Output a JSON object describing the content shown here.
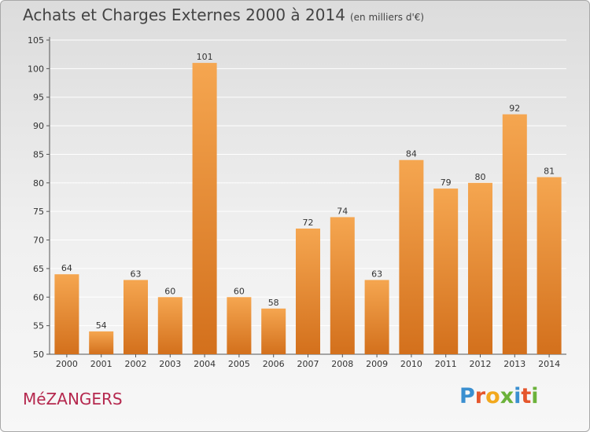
{
  "header": {
    "title": "Achats et Charges Externes 2000 à 2014",
    "subtitle": "(en milliers d'€)"
  },
  "footer": {
    "commune": "MéZANGERS",
    "logo_letters": [
      "P",
      "r",
      "o",
      "x",
      "i",
      "t",
      "i"
    ],
    "logo_colors": [
      "#3a8fd0",
      "#e5562c",
      "#f2a81d",
      "#6bb23a",
      "#3a8fd0",
      "#e5562c",
      "#6bb23a"
    ]
  },
  "colors": {
    "bar_light": "#f5a650",
    "bar_dark": "#d3701c",
    "axis": "#555555",
    "grid": "#ffffff"
  },
  "chart_data": {
    "type": "bar",
    "categories": [
      "2000",
      "2001",
      "2002",
      "2003",
      "2004",
      "2005",
      "2006",
      "2007",
      "2008",
      "2009",
      "2010",
      "2011",
      "2012",
      "2013",
      "2014"
    ],
    "values": [
      64,
      54,
      63,
      60,
      101,
      60,
      58,
      72,
      74,
      63,
      84,
      79,
      80,
      92,
      81
    ],
    "data_labels": [
      "64",
      "54",
      "63",
      "60",
      "101",
      "60",
      "58",
      "72",
      "74",
      "63",
      "84",
      "79",
      "80",
      "92",
      "81"
    ],
    "y_ticks": [
      "50",
      "55",
      "60",
      "65",
      "70",
      "75",
      "80",
      "85",
      "90",
      "95",
      "100",
      "105"
    ],
    "ylim": [
      50,
      105
    ],
    "grid": true
  }
}
